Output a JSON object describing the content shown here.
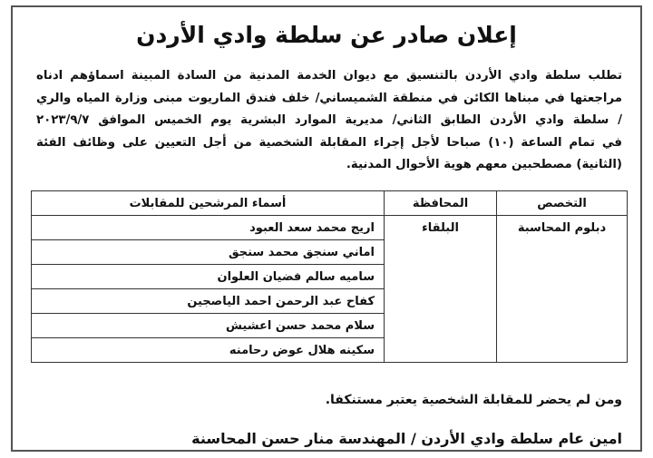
{
  "header": {
    "title": "إعلان صادر عن سلطة وادي الأردن"
  },
  "body": {
    "lines": [
      "تطلب سلطة وادي الأردن بالتنسيق مع ديوان الخدمة المدنية من السادة المبينة اسماؤهم ادناه",
      "مراجعتها في مبناها الكائن في منطقة الشميساني/ خلف فندق الماريوت مبنى وزارة المياه والري",
      "/ سلطة وادي الأردن الطابق الثاني/ مديرية الموارد البشرية يوم الخميس الموافق ٢٠٢٣/٩/٧",
      "في تمام الساعة (١٠) صباحا لأجل إجراء المقابلة الشخصية من أجل التعيين على وظائف الفئة",
      "(الثانية) مصطحبين معهم هوية الأحوال المدنية."
    ]
  },
  "table": {
    "headers": [
      "التخصص",
      "المحافظة",
      "أسماء المرشحين للمقابلات"
    ],
    "specialty": "دبلوم المحاسبة",
    "governorate": "البلقاء",
    "names": [
      "اريج محمد سعد العبود",
      "اماني سنجق محمد سنجق",
      "ساميه سالم فضيان العلوان",
      "كفاح عبد الرحمن احمد الياصجين",
      "سلام محمد حسن اعشيش",
      "سكينه هلال عوض رحامنه"
    ]
  },
  "notice": "ومن لم يحضر للمقابلة الشخصية يعتبر مستنكفا.",
  "signature": "امين عام سلطة وادي الأردن / المهندسة منار حسن المحاسنة"
}
